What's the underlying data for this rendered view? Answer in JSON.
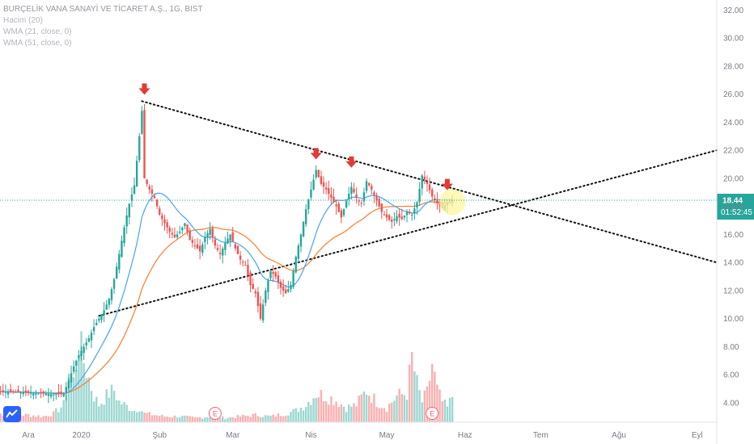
{
  "legend": {
    "title": "BURÇELİK VANA SANAYİ VE TİCARET A.Ş., 1G, BIST",
    "volume": "Hacim (20)",
    "wma21": "WMA (21, close, 0)",
    "wma51": "WMA (51, close, 0)"
  },
  "price_badge": {
    "value": "18.44",
    "countdown": "01:52:45"
  },
  "colors": {
    "up": "#26a69a",
    "down": "#ef5350",
    "wma21": "#42a5f5",
    "wma51": "#ff7b2e",
    "badge": "#26a69a",
    "trend": "#111111",
    "arrow": "#e53935",
    "highlight": "#fff59d"
  },
  "icons": {
    "logo": "tradingview-logo-icon",
    "arrow": "arrow-down-icon",
    "event": "earnings-event-icon"
  },
  "chart_data": {
    "type": "candlestick",
    "ylim": [
      3,
      33
    ],
    "y_ticks": [
      "4.00",
      "6.00",
      "8.00",
      "10.00",
      "12.00",
      "14.00",
      "16.00",
      "18.00",
      "20.00",
      "22.00",
      "24.00",
      "26.00",
      "28.00",
      "30.00",
      "32.00"
    ],
    "y_tick_values": [
      4,
      6,
      8,
      10,
      12,
      14,
      16,
      18,
      20,
      22,
      24,
      26,
      28,
      30,
      32
    ],
    "x_ticks": [
      {
        "label": "Ara",
        "day": 0
      },
      {
        "label": "2020",
        "day": 21
      },
      {
        "label": "Şub",
        "day": 52
      },
      {
        "label": "Mar",
        "day": 81
      },
      {
        "label": "Nis",
        "day": 112
      },
      {
        "label": "May",
        "day": 142
      },
      {
        "label": "Haz",
        "day": 173
      },
      {
        "label": "Tem",
        "day": 203
      },
      {
        "label": "Ağu",
        "day": 234
      },
      {
        "label": "Eyl",
        "day": 265
      }
    ],
    "last_price": 18.44,
    "close_series": [
      [
        -12,
        4.8
      ],
      [
        -6,
        4.75
      ],
      [
        0,
        4.7
      ],
      [
        6,
        4.65
      ],
      [
        10,
        4.6
      ],
      [
        14,
        4.65
      ],
      [
        16,
        5.6
      ],
      [
        18,
        6.6
      ],
      [
        20,
        7.4
      ],
      [
        22,
        8.0
      ],
      [
        24,
        8.6
      ],
      [
        26,
        9.4
      ],
      [
        28,
        10.0
      ],
      [
        30,
        10.6
      ],
      [
        32,
        11.4
      ],
      [
        34,
        12.8
      ],
      [
        36,
        14.6
      ],
      [
        38,
        16.5
      ],
      [
        40,
        18.2
      ],
      [
        42,
        19.5
      ],
      [
        44,
        23.0
      ],
      [
        45,
        24.8
      ],
      [
        46,
        20.0
      ],
      [
        48,
        19.2
      ],
      [
        50,
        18.6
      ],
      [
        52,
        17.4
      ],
      [
        54,
        16.8
      ],
      [
        56,
        16.2
      ],
      [
        58,
        15.8
      ],
      [
        60,
        16.2
      ],
      [
        62,
        16.8
      ],
      [
        64,
        15.6
      ],
      [
        66,
        15.2
      ],
      [
        68,
        14.8
      ],
      [
        70,
        15.8
      ],
      [
        72,
        16.4
      ],
      [
        74,
        15.2
      ],
      [
        76,
        14.6
      ],
      [
        78,
        15.4
      ],
      [
        80,
        16.0
      ],
      [
        82,
        15.0
      ],
      [
        84,
        14.2
      ],
      [
        86,
        13.8
      ],
      [
        88,
        12.4
      ],
      [
        90,
        11.8
      ],
      [
        92,
        10.0
      ],
      [
        94,
        12.0
      ],
      [
        96,
        13.4
      ],
      [
        98,
        13.0
      ],
      [
        100,
        12.2
      ],
      [
        102,
        11.8
      ],
      [
        104,
        12.4
      ],
      [
        106,
        14.4
      ],
      [
        108,
        16.0
      ],
      [
        110,
        17.8
      ],
      [
        112,
        19.2
      ],
      [
        114,
        20.6
      ],
      [
        116,
        19.6
      ],
      [
        118,
        19.2
      ],
      [
        120,
        18.6
      ],
      [
        122,
        18.0
      ],
      [
        124,
        17.2
      ],
      [
        126,
        18.4
      ],
      [
        128,
        19.4
      ],
      [
        130,
        18.6
      ],
      [
        132,
        18.2
      ],
      [
        134,
        19.8
      ],
      [
        136,
        19.2
      ],
      [
        138,
        18.4
      ],
      [
        140,
        17.6
      ],
      [
        142,
        17.2
      ],
      [
        144,
        16.9
      ],
      [
        146,
        17.3
      ],
      [
        148,
        17.1
      ],
      [
        150,
        17.6
      ],
      [
        152,
        17.4
      ],
      [
        154,
        18.3
      ],
      [
        156,
        20.2
      ],
      [
        158,
        19.6
      ],
      [
        160,
        18.7
      ],
      [
        162,
        18.2
      ],
      [
        164,
        17.9
      ],
      [
        166,
        18.3
      ],
      [
        168,
        18.44
      ]
    ],
    "volume_series": [
      [
        -12,
        0.06
      ],
      [
        -6,
        0.05
      ],
      [
        0,
        0.05
      ],
      [
        6,
        0.04
      ],
      [
        10,
        0.06
      ],
      [
        14,
        0.12
      ],
      [
        16,
        0.35
      ],
      [
        18,
        0.28
      ],
      [
        20,
        0.55
      ],
      [
        22,
        0.42
      ],
      [
        24,
        0.3
      ],
      [
        26,
        0.18
      ],
      [
        28,
        0.12
      ],
      [
        30,
        0.16
      ],
      [
        32,
        0.2
      ],
      [
        34,
        0.22
      ],
      [
        36,
        0.14
      ],
      [
        38,
        0.12
      ],
      [
        40,
        0.1
      ],
      [
        42,
        0.08
      ],
      [
        44,
        0.1
      ],
      [
        46,
        0.06
      ],
      [
        50,
        0.05
      ],
      [
        54,
        0.04
      ],
      [
        60,
        0.04
      ],
      [
        66,
        0.03
      ],
      [
        72,
        0.04
      ],
      [
        78,
        0.03
      ],
      [
        84,
        0.04
      ],
      [
        90,
        0.05
      ],
      [
        96,
        0.04
      ],
      [
        102,
        0.06
      ],
      [
        106,
        0.08
      ],
      [
        110,
        0.12
      ],
      [
        114,
        0.2
      ],
      [
        118,
        0.18
      ],
      [
        122,
        0.15
      ],
      [
        126,
        0.1
      ],
      [
        130,
        0.12
      ],
      [
        134,
        0.22
      ],
      [
        138,
        0.14
      ],
      [
        142,
        0.1
      ],
      [
        146,
        0.18
      ],
      [
        150,
        0.2
      ],
      [
        152,
        0.44
      ],
      [
        154,
        0.26
      ],
      [
        156,
        0.14
      ],
      [
        158,
        0.2
      ],
      [
        160,
        0.4
      ],
      [
        162,
        0.22
      ],
      [
        164,
        0.14
      ],
      [
        166,
        0.1
      ],
      [
        168,
        0.18
      ]
    ],
    "trendlines": [
      {
        "from": [
          45,
          25.5
        ],
        "to": [
          290,
          14.0
        ]
      },
      {
        "from": [
          28,
          10.2
        ],
        "to": [
          290,
          22.0
        ]
      }
    ],
    "arrows": [
      {
        "day": 46,
        "price": 26.3
      },
      {
        "day": 114,
        "price": 21.7
      },
      {
        "day": 128,
        "price": 21.1
      },
      {
        "day": 166,
        "price": 19.5
      }
    ],
    "highlight": {
      "day": 168,
      "price": 18.3
    },
    "events": [
      {
        "label": "E",
        "day": 74
      },
      {
        "label": "E",
        "day": 160
      }
    ]
  }
}
